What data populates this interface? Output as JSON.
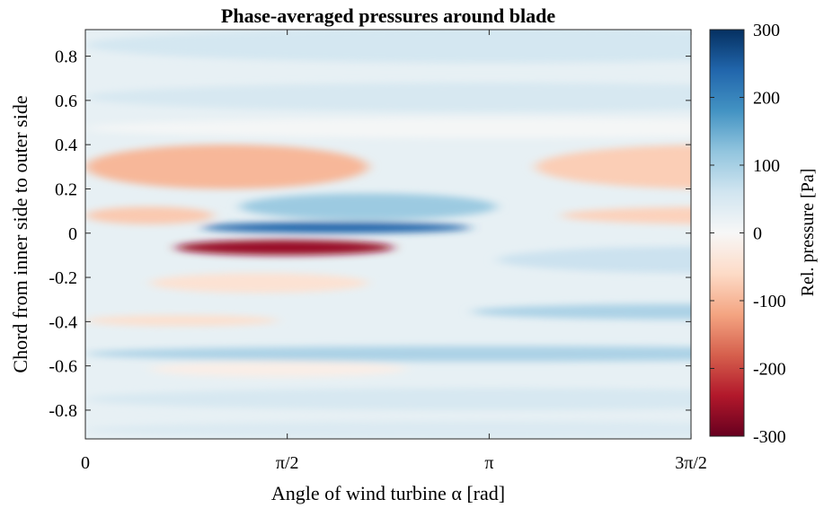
{
  "chart_data": {
    "type": "heatmap",
    "title": "Phase-averaged pressures around blade",
    "xlabel": "Angle of wind turbine α [rad]",
    "ylabel": "Chord from inner side to outer side",
    "colorbar_label": "Rel. pressure [Pa]",
    "colormap": "blue-white-red diverging (positive = blue, negative = red)",
    "colormap_stops": [
      "#67001f",
      "#b2182b",
      "#d6604d",
      "#f4a582",
      "#fddbc7",
      "#f7f7f7",
      "#d1e5f0",
      "#92c5de",
      "#4393c3",
      "#2166ac",
      "#053061"
    ],
    "xlim": [
      0,
      4.712
    ],
    "ylim": [
      -0.93,
      0.92
    ],
    "clim": [
      -300,
      300
    ],
    "x_ticks": [
      {
        "value": 0,
        "label": "0"
      },
      {
        "value": 1.5708,
        "label": "π/2"
      },
      {
        "value": 3.1416,
        "label": "π"
      },
      {
        "value": 4.7124,
        "label": "3π/2"
      }
    ],
    "y_ticks": [
      {
        "value": 0.8,
        "label": "0.8"
      },
      {
        "value": 0.6,
        "label": "0.6"
      },
      {
        "value": 0.4,
        "label": "0.4"
      },
      {
        "value": 0.2,
        "label": "0.2"
      },
      {
        "value": 0,
        "label": "0"
      },
      {
        "value": -0.2,
        "label": "-0.2"
      },
      {
        "value": -0.4,
        "label": "-0.4"
      },
      {
        "value": -0.6,
        "label": "-0.6"
      },
      {
        "value": -0.8,
        "label": "-0.8"
      }
    ],
    "colorbar_ticks": [
      {
        "value": 300,
        "label": "300"
      },
      {
        "value": 200,
        "label": "200"
      },
      {
        "value": 100,
        "label": "100"
      },
      {
        "value": 0,
        "label": "0"
      },
      {
        "value": -100,
        "label": "-100"
      },
      {
        "value": -200,
        "label": "-200"
      },
      {
        "value": -300,
        "label": "-300"
      }
    ],
    "features": [
      {
        "x": [
          0,
          6.3
        ],
        "y": [
          0.77,
          0.93
        ],
        "pressure": 55
      },
      {
        "x": [
          0,
          6.3
        ],
        "y": [
          0.55,
          0.68
        ],
        "pressure": 50
      },
      {
        "x": [
          0,
          6.3
        ],
        "y": [
          0.43,
          0.52
        ],
        "pressure": 5
      },
      {
        "x": [
          0,
          2.2
        ],
        "y": [
          0.2,
          0.4
        ],
        "pressure": -100
      },
      {
        "x": [
          3.5,
          6.3
        ],
        "y": [
          0.2,
          0.4
        ],
        "pressure": -75
      },
      {
        "x": [
          0,
          1.0
        ],
        "y": [
          0.04,
          0.12
        ],
        "pressure": -80
      },
      {
        "x": [
          3.7,
          6.3
        ],
        "y": [
          0.04,
          0.12
        ],
        "pressure": -70
      },
      {
        "x": [
          1.2,
          3.2
        ],
        "y": [
          0.06,
          0.18
        ],
        "pressure": 110
      },
      {
        "x": [
          0.9,
          3.0
        ],
        "y": [
          0.0,
          0.05
        ],
        "pressure": 240
      },
      {
        "x": [
          0.7,
          2.4
        ],
        "y": [
          -0.1,
          -0.03
        ],
        "pressure": -260
      },
      {
        "x": [
          0.5,
          2.2
        ],
        "y": [
          -0.27,
          -0.18
        ],
        "pressure": -45
      },
      {
        "x": [
          3.2,
          6.3
        ],
        "y": [
          -0.18,
          -0.06
        ],
        "pressure": 65
      },
      {
        "x": [
          3.0,
          6.3
        ],
        "y": [
          -0.39,
          -0.32
        ],
        "pressure": 95
      },
      {
        "x": [
          0,
          1.5
        ],
        "y": [
          -0.42,
          -0.37
        ],
        "pressure": -50
      },
      {
        "x": [
          0,
          6.3
        ],
        "y": [
          -0.58,
          -0.51
        ],
        "pressure": 95
      },
      {
        "x": [
          0.5,
          2.5
        ],
        "y": [
          -0.65,
          -0.58
        ],
        "pressure": -20
      },
      {
        "x": [
          0,
          6.3
        ],
        "y": [
          -0.8,
          -0.7
        ],
        "pressure": 50
      },
      {
        "x": [
          0,
          6.3
        ],
        "y": [
          -0.93,
          -0.85
        ],
        "pressure": 45
      }
    ]
  }
}
